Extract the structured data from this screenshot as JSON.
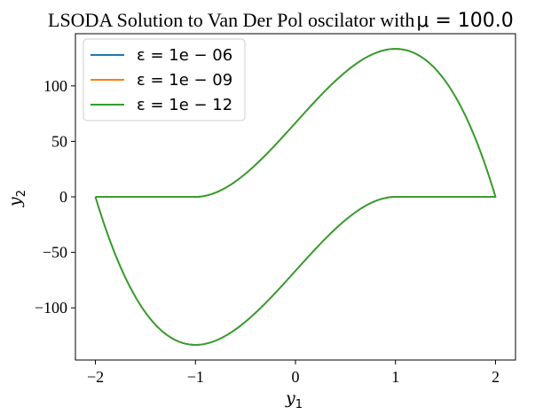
{
  "chart_data": {
    "type": "line",
    "title": {
      "text": "LSODA Solution to Van Der Pol oscilator with ",
      "math": "μ = 100.0"
    },
    "xlabel": {
      "base": "y",
      "sub": "1"
    },
    "ylabel": {
      "base": "y",
      "sub": "2"
    },
    "xlim": [
      -2.2,
      2.2
    ],
    "ylim": [
      -147,
      147
    ],
    "xticks": [
      -2,
      -1,
      0,
      1,
      2
    ],
    "yticks": [
      -100,
      -50,
      0,
      50,
      100
    ],
    "xtick_labels": [
      "−2",
      "−1",
      "0",
      "1",
      "2"
    ],
    "ytick_labels": [
      "−100",
      "−50",
      "0",
      "50",
      "100"
    ],
    "mu": 100.0,
    "grid": false,
    "legend_position": "top-left",
    "series": [
      {
        "name": "ε = 1e − 06",
        "color": "#1f77b4"
      },
      {
        "name": "ε = 1e − 09",
        "color": "#ff7f0e"
      },
      {
        "name": "ε = 1e − 12",
        "color": "#2ca02c"
      }
    ],
    "note": "All three series overlap; they trace the Van der Pol relaxation limit cycle: y2 = mu*(y1 - y1^3/3 - 2/3) on the left/bottom branch and y2 = mu*(y1 - y1^3/3 + 2/3) on the right/top branch, with near-vertical jumps at y1 = ±2 (y2 = 0) and flat segments y2 ≈ 0 between y1 = -2..-1 and y1 = 1..2."
  }
}
